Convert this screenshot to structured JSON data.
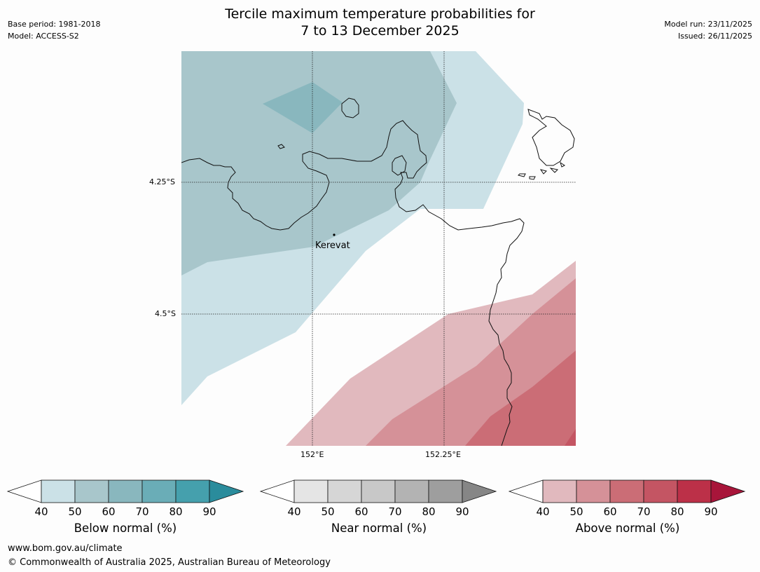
{
  "header": {
    "title_line1": "Tercile maximum temperature probabilities for",
    "title_line2": "7 to 13 December 2025",
    "base_period": "Base period: 1981-2018",
    "model": "Model: ACCESS-S2",
    "model_run": "Model run: 23/11/2025",
    "issued": "Issued: 26/11/2025"
  },
  "map": {
    "lat_labels": [
      "4.25°S",
      "4.5°S"
    ],
    "lon_labels": [
      "152°E",
      "152.25°E"
    ],
    "place": "Kerevat"
  },
  "colorbars": {
    "below": {
      "label": "Below normal (%)",
      "ticks": [
        "40",
        "50",
        "60",
        "70",
        "80",
        "90"
      ],
      "colors": [
        "#ffffff",
        "#cbe1e7",
        "#a8c6cb",
        "#89b7be",
        "#6aadb7",
        "#45a0ad",
        "#2a8c9c"
      ]
    },
    "near": {
      "label": "Near normal (%)",
      "ticks": [
        "40",
        "50",
        "60",
        "70",
        "80",
        "90"
      ],
      "colors": [
        "#ffffff",
        "#e5e5e5",
        "#d6d6d6",
        "#c8c8c8",
        "#b3b3b3",
        "#9e9e9e",
        "#868686"
      ]
    },
    "above": {
      "label": "Above normal (%)",
      "ticks": [
        "40",
        "50",
        "60",
        "70",
        "80",
        "90"
      ],
      "colors": [
        "#ffffff",
        "#e1b9be",
        "#d59198",
        "#cb6d76",
        "#c45563",
        "#bc3048",
        "#a8153a"
      ]
    }
  },
  "footer": {
    "url": "www.bom.gov.au/climate",
    "copyright": "© Commonwealth of Australia 2025, Australian Bureau of Meteorology"
  }
}
